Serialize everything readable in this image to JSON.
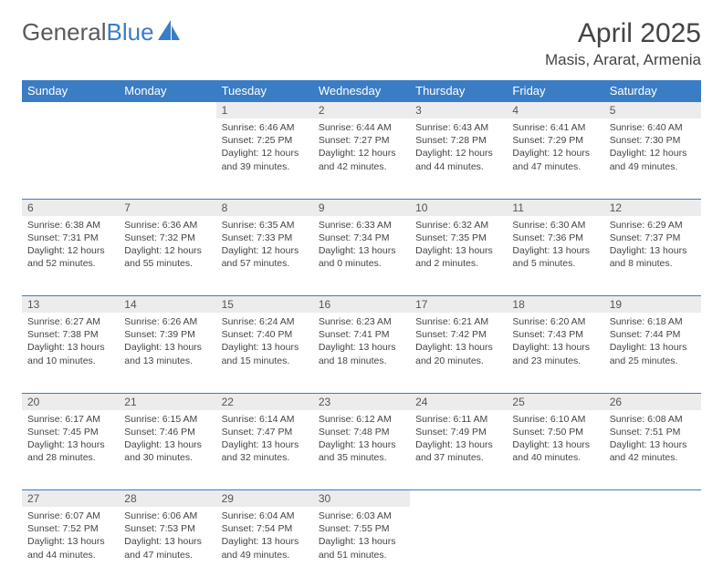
{
  "logo": {
    "text_gray": "General",
    "text_blue": "Blue"
  },
  "title": "April 2025",
  "location": "Masis, Ararat, Armenia",
  "colors": {
    "header_bg": "#3b7dc4",
    "header_text": "#ffffff",
    "daynum_bg": "#ececec",
    "border": "#3b7dc4",
    "body_text": "#444444",
    "logo_gray": "#5a5a5a",
    "logo_blue": "#3b7dc4"
  },
  "typography": {
    "title_fontsize": 30,
    "location_fontsize": 17,
    "header_fontsize": 13,
    "daynum_fontsize": 12,
    "cell_fontsize": 10.5
  },
  "daysOfWeek": [
    "Sunday",
    "Monday",
    "Tuesday",
    "Wednesday",
    "Thursday",
    "Friday",
    "Saturday"
  ],
  "weeks": [
    [
      null,
      null,
      {
        "n": "1",
        "sunrise": "6:46 AM",
        "sunset": "7:25 PM",
        "daylight": "12 hours and 39 minutes."
      },
      {
        "n": "2",
        "sunrise": "6:44 AM",
        "sunset": "7:27 PM",
        "daylight": "12 hours and 42 minutes."
      },
      {
        "n": "3",
        "sunrise": "6:43 AM",
        "sunset": "7:28 PM",
        "daylight": "12 hours and 44 minutes."
      },
      {
        "n": "4",
        "sunrise": "6:41 AM",
        "sunset": "7:29 PM",
        "daylight": "12 hours and 47 minutes."
      },
      {
        "n": "5",
        "sunrise": "6:40 AM",
        "sunset": "7:30 PM",
        "daylight": "12 hours and 49 minutes."
      }
    ],
    [
      {
        "n": "6",
        "sunrise": "6:38 AM",
        "sunset": "7:31 PM",
        "daylight": "12 hours and 52 minutes."
      },
      {
        "n": "7",
        "sunrise": "6:36 AM",
        "sunset": "7:32 PM",
        "daylight": "12 hours and 55 minutes."
      },
      {
        "n": "8",
        "sunrise": "6:35 AM",
        "sunset": "7:33 PM",
        "daylight": "12 hours and 57 minutes."
      },
      {
        "n": "9",
        "sunrise": "6:33 AM",
        "sunset": "7:34 PM",
        "daylight": "13 hours and 0 minutes."
      },
      {
        "n": "10",
        "sunrise": "6:32 AM",
        "sunset": "7:35 PM",
        "daylight": "13 hours and 2 minutes."
      },
      {
        "n": "11",
        "sunrise": "6:30 AM",
        "sunset": "7:36 PM",
        "daylight": "13 hours and 5 minutes."
      },
      {
        "n": "12",
        "sunrise": "6:29 AM",
        "sunset": "7:37 PM",
        "daylight": "13 hours and 8 minutes."
      }
    ],
    [
      {
        "n": "13",
        "sunrise": "6:27 AM",
        "sunset": "7:38 PM",
        "daylight": "13 hours and 10 minutes."
      },
      {
        "n": "14",
        "sunrise": "6:26 AM",
        "sunset": "7:39 PM",
        "daylight": "13 hours and 13 minutes."
      },
      {
        "n": "15",
        "sunrise": "6:24 AM",
        "sunset": "7:40 PM",
        "daylight": "13 hours and 15 minutes."
      },
      {
        "n": "16",
        "sunrise": "6:23 AM",
        "sunset": "7:41 PM",
        "daylight": "13 hours and 18 minutes."
      },
      {
        "n": "17",
        "sunrise": "6:21 AM",
        "sunset": "7:42 PM",
        "daylight": "13 hours and 20 minutes."
      },
      {
        "n": "18",
        "sunrise": "6:20 AM",
        "sunset": "7:43 PM",
        "daylight": "13 hours and 23 minutes."
      },
      {
        "n": "19",
        "sunrise": "6:18 AM",
        "sunset": "7:44 PM",
        "daylight": "13 hours and 25 minutes."
      }
    ],
    [
      {
        "n": "20",
        "sunrise": "6:17 AM",
        "sunset": "7:45 PM",
        "daylight": "13 hours and 28 minutes."
      },
      {
        "n": "21",
        "sunrise": "6:15 AM",
        "sunset": "7:46 PM",
        "daylight": "13 hours and 30 minutes."
      },
      {
        "n": "22",
        "sunrise": "6:14 AM",
        "sunset": "7:47 PM",
        "daylight": "13 hours and 32 minutes."
      },
      {
        "n": "23",
        "sunrise": "6:12 AM",
        "sunset": "7:48 PM",
        "daylight": "13 hours and 35 minutes."
      },
      {
        "n": "24",
        "sunrise": "6:11 AM",
        "sunset": "7:49 PM",
        "daylight": "13 hours and 37 minutes."
      },
      {
        "n": "25",
        "sunrise": "6:10 AM",
        "sunset": "7:50 PM",
        "daylight": "13 hours and 40 minutes."
      },
      {
        "n": "26",
        "sunrise": "6:08 AM",
        "sunset": "7:51 PM",
        "daylight": "13 hours and 42 minutes."
      }
    ],
    [
      {
        "n": "27",
        "sunrise": "6:07 AM",
        "sunset": "7:52 PM",
        "daylight": "13 hours and 44 minutes."
      },
      {
        "n": "28",
        "sunrise": "6:06 AM",
        "sunset": "7:53 PM",
        "daylight": "13 hours and 47 minutes."
      },
      {
        "n": "29",
        "sunrise": "6:04 AM",
        "sunset": "7:54 PM",
        "daylight": "13 hours and 49 minutes."
      },
      {
        "n": "30",
        "sunrise": "6:03 AM",
        "sunset": "7:55 PM",
        "daylight": "13 hours and 51 minutes."
      },
      null,
      null,
      null
    ]
  ],
  "labels": {
    "sunrise": "Sunrise: ",
    "sunset": "Sunset: ",
    "daylight": "Daylight: "
  }
}
